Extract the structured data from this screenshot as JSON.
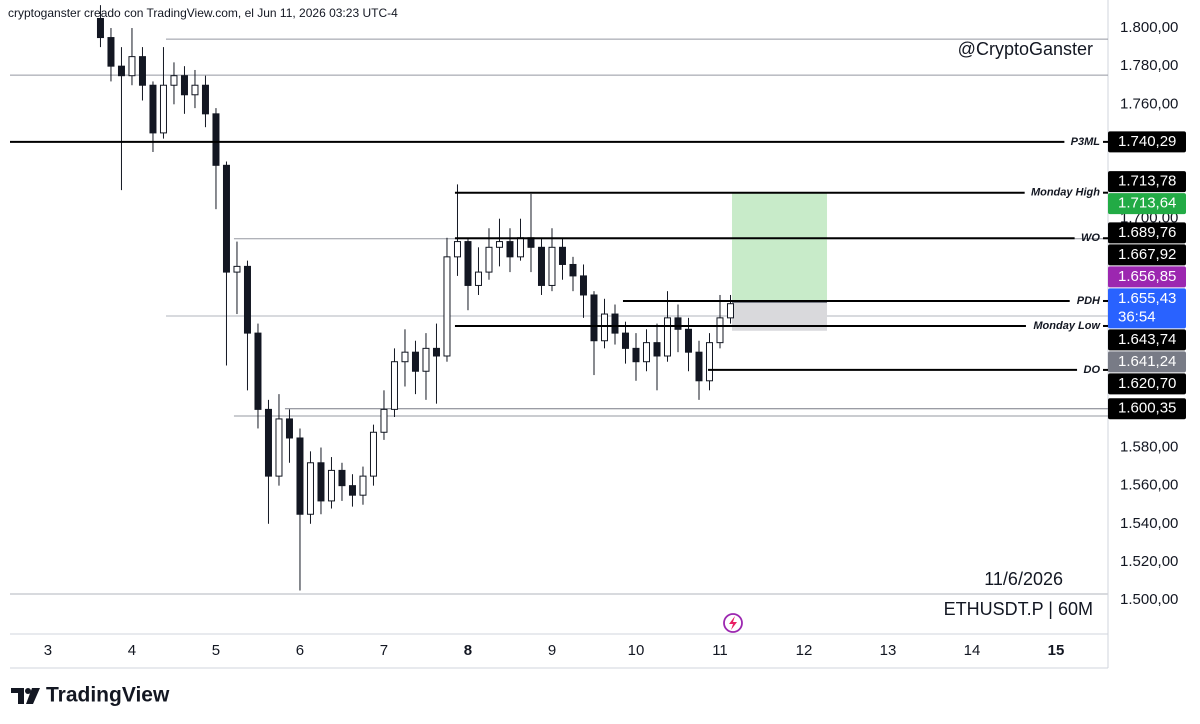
{
  "header": {
    "text": "cryptoganster creado con TradingView.com, el Jun 11, 2026 03:23 UTC-4"
  },
  "footer": {
    "brand": "TradingView"
  },
  "chart_data": {
    "type": "candlestick",
    "watermark": "@CryptoGanster",
    "date_label": "11/6/2026",
    "symbol": "ETHUSDT.P | 60M",
    "xlim": [
      2.548,
      15.619
    ],
    "ylim": [
      1482.2,
      1814.7
    ],
    "xticks": [
      3,
      4,
      5,
      6,
      7,
      8,
      9,
      10,
      11,
      12,
      13,
      14,
      15
    ],
    "xticks_bold": [
      8,
      15
    ],
    "yticks": [
      {
        "value": 1500,
        "label": "1.500,00"
      },
      {
        "value": 1520,
        "label": "1.520,00"
      },
      {
        "value": 1540,
        "label": "1.540,00"
      },
      {
        "value": 1560,
        "label": "1.560,00"
      },
      {
        "value": 1580,
        "label": "1.580,00"
      },
      {
        "value": 1700,
        "label": "1.700,00"
      },
      {
        "value": 1760,
        "label": "1.760,00"
      },
      {
        "value": 1780,
        "label": "1.780,00"
      },
      {
        "value": 1800,
        "label": "1.800,00"
      }
    ],
    "up_color": "#ffffff",
    "down_color": "#131722",
    "wick_color": "#131722",
    "candles": {
      "x": [
        3.625,
        3.75,
        3.875,
        4,
        4.125,
        4.25,
        4.375,
        4.5,
        4.625,
        4.75,
        4.875,
        5,
        5.125,
        5.25,
        5.375,
        5.5,
        5.625,
        5.75,
        5.875,
        6,
        6.125,
        6.25,
        6.375,
        6.5,
        6.625,
        6.75,
        6.875,
        7,
        7.125,
        7.25,
        7.375,
        7.5,
        7.625,
        7.75,
        7.875,
        8,
        8.125,
        8.25,
        8.375,
        8.5,
        8.625,
        8.75,
        8.875,
        9,
        9.125,
        9.25,
        9.375,
        9.5,
        9.625,
        9.75,
        9.875,
        10,
        10.125,
        10.25,
        10.375,
        10.5,
        10.625,
        10.75,
        10.875,
        11,
        11.125
      ],
      "open": [
        1805,
        1795,
        1780,
        1775,
        1785,
        1770,
        1745,
        1770,
        1775,
        1765,
        1770,
        1755,
        1728,
        1672,
        1675,
        1640,
        1600,
        1565,
        1595,
        1585,
        1545,
        1572,
        1552,
        1568,
        1560,
        1555,
        1565,
        1588,
        1600,
        1625,
        1630,
        1620,
        1632,
        1628,
        1680,
        1688,
        1665,
        1672,
        1685,
        1688,
        1680,
        1690,
        1685,
        1665,
        1685,
        1676,
        1670,
        1660,
        1636,
        1650,
        1640,
        1632,
        1625,
        1635,
        1628,
        1648,
        1642,
        1630,
        1615,
        1635,
        1648
      ],
      "high": [
        1812,
        1800,
        1790,
        1800,
        1790,
        1772,
        1790,
        1782,
        1780,
        1778,
        1775,
        1758,
        1730,
        1688,
        1678,
        1645,
        1605,
        1608,
        1600,
        1590,
        1578,
        1580,
        1575,
        1572,
        1566,
        1570,
        1592,
        1610,
        1632,
        1642,
        1636,
        1640,
        1645,
        1690,
        1718,
        1690,
        1685,
        1695,
        1700,
        1695,
        1700,
        1713,
        1690,
        1695,
        1690,
        1680,
        1676,
        1662,
        1658,
        1655,
        1646,
        1640,
        1642,
        1645,
        1662,
        1655,
        1648,
        1636,
        1640,
        1660,
        1660
      ],
      "low": [
        1790,
        1772,
        1715,
        1770,
        1762,
        1735,
        1742,
        1760,
        1755,
        1758,
        1748,
        1705,
        1623,
        1650,
        1610,
        1590,
        1540,
        1560,
        1572,
        1505,
        1540,
        1545,
        1548,
        1552,
        1549,
        1550,
        1560,
        1584,
        1596,
        1612,
        1608,
        1605,
        1603,
        1625,
        1670,
        1652,
        1660,
        1668,
        1675,
        1672,
        1678,
        1672,
        1660,
        1662,
        1668,
        1662,
        1648,
        1618,
        1632,
        1634,
        1624,
        1615,
        1620,
        1610,
        1625,
        1630,
        1620,
        1605,
        1610,
        1632,
        1645
      ],
      "close": [
        1795,
        1780,
        1775,
        1785,
        1770,
        1745,
        1770,
        1775,
        1765,
        1770,
        1755,
        1728,
        1672,
        1675,
        1640,
        1600,
        1565,
        1595,
        1585,
        1545,
        1572,
        1552,
        1568,
        1560,
        1555,
        1565,
        1588,
        1600,
        1625,
        1630,
        1620,
        1632,
        1628,
        1680,
        1688,
        1665,
        1672,
        1685,
        1688,
        1680,
        1690,
        1685,
        1665,
        1685,
        1676,
        1670,
        1660,
        1636,
        1650,
        1640,
        1632,
        1625,
        1635,
        1628,
        1648,
        1642,
        1630,
        1615,
        1635,
        1648,
        1655.43
      ]
    },
    "levels": [
      {
        "name": "P3ML",
        "value": 1740.29,
        "label": "1.740,29",
        "color": "#000000",
        "box_color": "#000000",
        "x_start": 2.548
      },
      {
        "name": "Monday High",
        "value": 1713.64,
        "label": "1.713,64",
        "color": "#000000",
        "box_color": "#22ab45",
        "x_start": 7.845
      },
      {
        "name": "WO",
        "value": 1689.76,
        "label": "1.689,76",
        "color": "#000000",
        "box_color": "#000000",
        "x_start": 7.845
      },
      {
        "name": "PDH",
        "value": 1656.85,
        "label": "1.656,85",
        "color": "#000000",
        "box_color": "#9c27b0",
        "x_start": 9.845
      },
      {
        "name": "Monday Low",
        "value": 1643.74,
        "label": "1.643,74",
        "color": "#000000",
        "box_color": "#000000",
        "x_start": 7.845
      },
      {
        "name": "DO",
        "value": 1620.7,
        "label": "1.620,70",
        "color": "#000000",
        "box_color": "#000000",
        "x_start": 10.857
      }
    ],
    "guides": [
      {
        "value": 1794.2,
        "x_start": 4.405,
        "color": "#9598a1"
      },
      {
        "value": 1775.3,
        "x_start": 2.548,
        "color": "#9598a1"
      },
      {
        "value": 1689.5,
        "x_start": 5.214,
        "color": "#9598a1"
      },
      {
        "value": 1649.0,
        "x_start": 4.405,
        "color": "#b2b5be"
      },
      {
        "value": 1600.35,
        "x_start": 5.821,
        "color": "#787b86",
        "label": "1.600,35",
        "box_color": "#000000"
      },
      {
        "value": 1596.5,
        "x_start": 5.214,
        "color": "#9598a1"
      }
    ],
    "price_labels": [
      {
        "value": 1713.78,
        "label": "1.713,78",
        "box_color": "#000000"
      },
      {
        "value": 1667.92,
        "label": "1.667,92",
        "box_color": "#000000"
      },
      {
        "value": 1655.43,
        "label": "1.655,43",
        "box_color": "#2962ff",
        "countdown": "36:54"
      },
      {
        "value": 1641.24,
        "label": "1.641,24",
        "box_color": "#787b86"
      }
    ],
    "position": {
      "target": 1713.78,
      "entry": 1656.2,
      "stop": 1641.24,
      "x_start": 11.143,
      "x_end": 12.274,
      "profit_color": "#c8ebc9",
      "loss_color": "#d9d9dc"
    }
  }
}
